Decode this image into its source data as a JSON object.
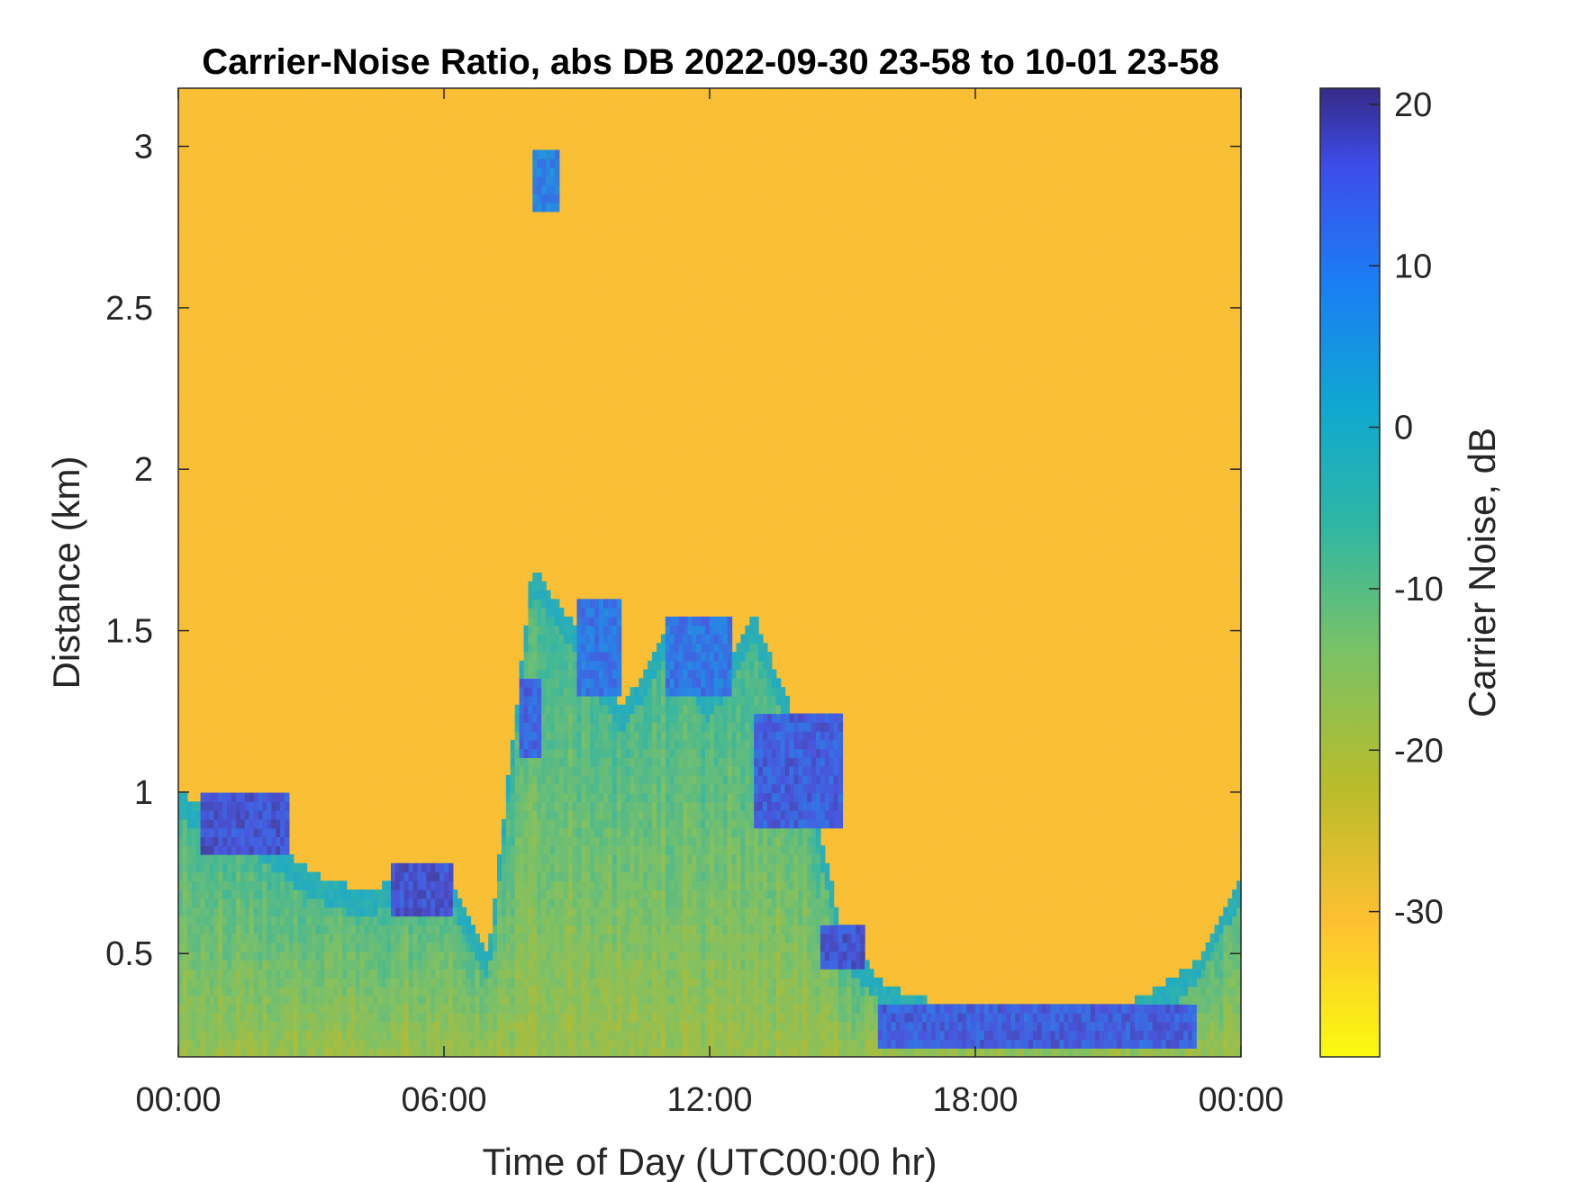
{
  "chart_data": {
    "type": "heatmap",
    "title": "Carrier-Noise Ratio, abs DB 2022-09-30 23-58 to 10-01 23-58",
    "xlabel": "Time of Day (UTC00:00 hr)",
    "ylabel": "Distance (km)",
    "x_ticks": [
      "00:00",
      "06:00",
      "12:00",
      "18:00",
      "00:00"
    ],
    "x_range_hours": [
      0,
      24
    ],
    "y_ticks": [
      "0.5",
      "1",
      "1.5",
      "2",
      "2.5",
      "3"
    ],
    "y_range": [
      0.18,
      3.18
    ],
    "colorbar": {
      "label": "Carrier Noise, dB",
      "ticks": [
        "20",
        "10",
        "0",
        "-10",
        "-20",
        "-30"
      ],
      "range": [
        -39,
        21
      ],
      "colormap": "parula",
      "colors": [
        "#f9fb0e",
        "#fec031",
        "#b8bc2a",
        "#79c265",
        "#2eb7a4",
        "#0fa8d0",
        "#1a7ef5",
        "#3d4dea",
        "#352a87"
      ]
    },
    "background_value_db": -31,
    "boundary_layer_top_km": [
      {
        "hour": 0,
        "km": 1.0
      },
      {
        "hour": 1,
        "km": 0.93
      },
      {
        "hour": 2,
        "km": 0.86
      },
      {
        "hour": 3,
        "km": 0.75
      },
      {
        "hour": 4,
        "km": 0.7
      },
      {
        "hour": 5,
        "km": 0.72
      },
      {
        "hour": 6,
        "km": 0.78
      },
      {
        "hour": 7,
        "km": 0.5
      },
      {
        "hour": 8,
        "km": 1.7
      },
      {
        "hour": 9,
        "km": 1.5
      },
      {
        "hour": 10,
        "km": 1.25
      },
      {
        "hour": 11,
        "km": 1.5
      },
      {
        "hour": 12,
        "km": 1.3
      },
      {
        "hour": 13,
        "km": 1.55
      },
      {
        "hour": 14,
        "km": 1.2
      },
      {
        "hour": 15,
        "km": 0.55
      },
      {
        "hour": 16,
        "km": 0.4
      },
      {
        "hour": 17,
        "km": 0.35
      },
      {
        "hour": 18,
        "km": 0.33
      },
      {
        "hour": 19,
        "km": 0.31
      },
      {
        "hour": 20,
        "km": 0.3
      },
      {
        "hour": 21,
        "km": 0.32
      },
      {
        "hour": 22,
        "km": 0.38
      },
      {
        "hour": 23,
        "km": 0.48
      },
      {
        "hour": 24,
        "km": 0.75
      }
    ],
    "strong_signal_layers": [
      {
        "hours": [
          0.5,
          2.5
        ],
        "km": [
          0.8,
          1.0
        ],
        "db": 18
      },
      {
        "hours": [
          4.8,
          6.2
        ],
        "km": [
          0.62,
          0.78
        ],
        "db": 18
      },
      {
        "hours": [
          7.7,
          8.2
        ],
        "km": [
          1.1,
          1.35
        ],
        "db": 15
      },
      {
        "hours": [
          8.0,
          8.6
        ],
        "km": [
          2.8,
          3.0
        ],
        "db": 10
      },
      {
        "hours": [
          9.0,
          10.0
        ],
        "km": [
          1.3,
          1.6
        ],
        "db": 12
      },
      {
        "hours": [
          11.0,
          12.5
        ],
        "km": [
          1.3,
          1.55
        ],
        "db": 12
      },
      {
        "hours": [
          13.0,
          15.0
        ],
        "km": [
          0.9,
          1.25
        ],
        "db": 16
      },
      {
        "hours": [
          14.5,
          15.5
        ],
        "km": [
          0.45,
          0.58
        ],
        "db": 18
      },
      {
        "hours": [
          15.8,
          23.0
        ],
        "km": [
          0.22,
          0.33
        ],
        "db": 16
      }
    ]
  }
}
